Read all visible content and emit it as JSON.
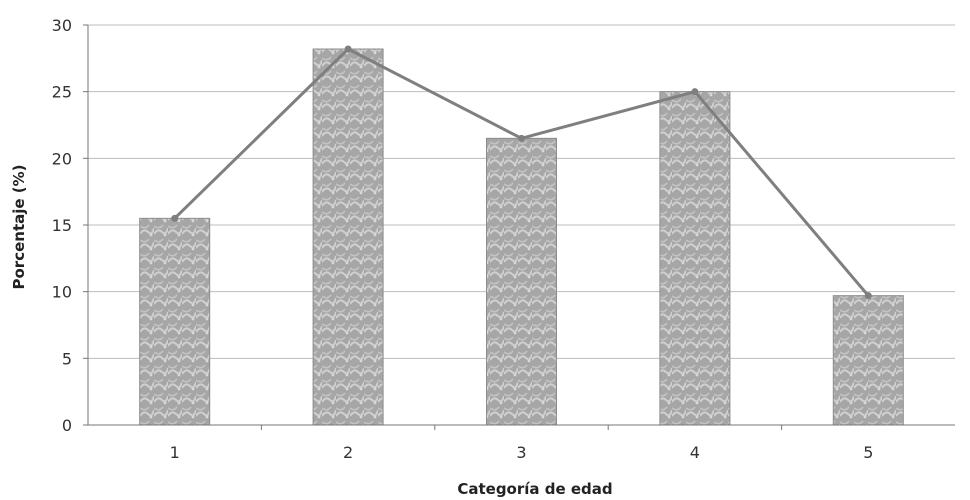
{
  "chart_data": {
    "type": "bar",
    "categories": [
      "1",
      "2",
      "3",
      "4",
      "5"
    ],
    "values": [
      15.5,
      28.2,
      21.5,
      25.0,
      9.7
    ],
    "line_overlay": true,
    "xlabel": "Categoría de edad",
    "ylabel": "Porcentaje (%)",
    "ylim": [
      0,
      30
    ],
    "yticks": [
      "0",
      "5",
      "10",
      "15",
      "20",
      "25",
      "30"
    ],
    "grid": true,
    "legend": "none",
    "colors": {
      "bar_fill": "#a9a9a9",
      "bar_stroke": "#8c8c8c",
      "line": "#7f7f7f",
      "grid": "#bdbdbd"
    }
  }
}
